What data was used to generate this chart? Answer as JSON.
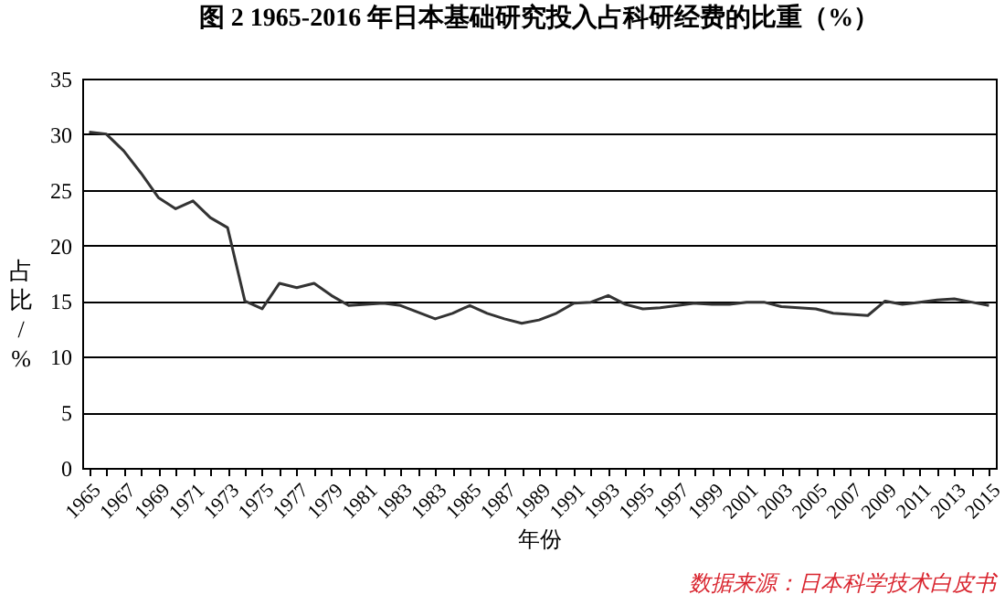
{
  "chart_data": {
    "type": "line",
    "title": "图 2 1965-2016 年日本基础研究投入占科研经费的比重（%）",
    "xlabel": "年份",
    "ylabel": "占比/%",
    "categories": [
      "1965",
      null,
      "1967",
      null,
      "1969",
      null,
      "1971",
      null,
      "1973",
      null,
      "1975",
      null,
      "1977",
      null,
      "1979",
      null,
      "1981",
      null,
      "1983",
      null,
      "1983",
      null,
      "1985",
      null,
      "1987",
      null,
      "1989",
      null,
      "1991",
      null,
      "1993",
      null,
      "1995",
      null,
      "1997",
      null,
      "1999",
      null,
      "2001",
      null,
      "2003",
      null,
      "2005",
      null,
      "2007",
      null,
      "2009",
      null,
      "2011",
      null,
      "2013",
      null,
      "2015"
    ],
    "series": [
      {
        "color": "#333333",
        "values": [
          30.2,
          30.0,
          28.5,
          26.5,
          24.3,
          23.3,
          24.0,
          22.5,
          21.6,
          15.0,
          14.3,
          16.6,
          16.2,
          16.6,
          15.5,
          14.6,
          14.7,
          14.8,
          14.6,
          14.0,
          13.4,
          13.9,
          14.6,
          13.9,
          13.4,
          13.0,
          13.3,
          13.9,
          14.8,
          14.9,
          15.5,
          14.7,
          14.3,
          14.4,
          14.6,
          14.8,
          14.7,
          14.7,
          14.9,
          14.9,
          14.5,
          14.4,
          14.3,
          13.9,
          13.8,
          13.7,
          15.0,
          14.7,
          14.9,
          15.1,
          15.2,
          14.9,
          14.6
        ]
      }
    ],
    "ylim": [
      0,
      35
    ],
    "yticks": [
      0,
      5,
      10,
      15,
      20,
      25,
      30,
      35
    ],
    "grid": "y",
    "marker": "none",
    "line_style": "solid",
    "annotations": [
      "数据来源：日本科学技术白皮书"
    ]
  }
}
